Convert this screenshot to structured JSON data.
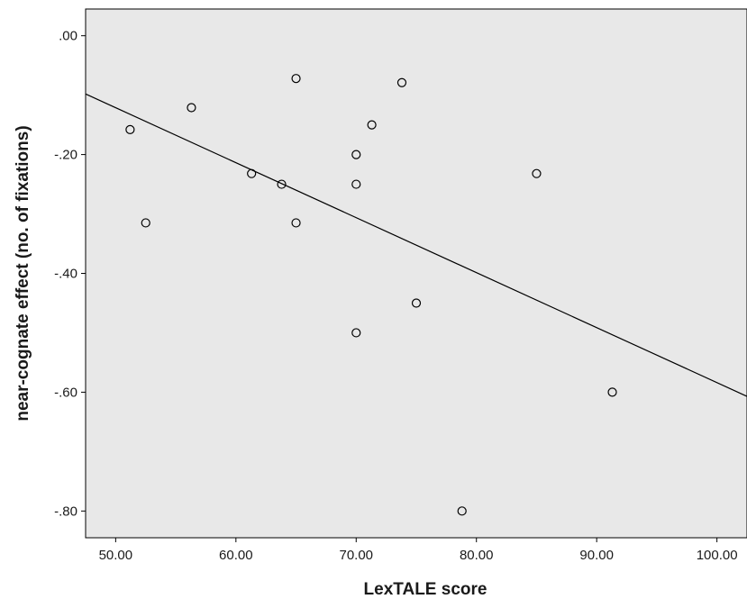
{
  "chart_data": {
    "type": "scatter",
    "title": "",
    "xlabel": "LexTALE score",
    "ylabel": "near-cognate effect (no. of fixations)",
    "xlim": [
      47.5,
      102.5
    ],
    "ylim": [
      -0.845,
      0.045
    ],
    "x_ticks": [
      50,
      60,
      70,
      80,
      90,
      100
    ],
    "x_tick_labels": [
      "50.00",
      "60.00",
      "70.00",
      "80.00",
      "90.00",
      "100.00"
    ],
    "y_ticks": [
      0,
      -0.2,
      -0.4,
      -0.6,
      -0.8
    ],
    "y_tick_labels": [
      ".00",
      "-.20",
      "-.40",
      "-.60",
      "-.80"
    ],
    "grid": false,
    "points": [
      {
        "x": 51.2,
        "y": -0.158
      },
      {
        "x": 52.5,
        "y": -0.315
      },
      {
        "x": 56.3,
        "y": -0.121
      },
      {
        "x": 61.3,
        "y": -0.232
      },
      {
        "x": 63.8,
        "y": -0.25
      },
      {
        "x": 65.0,
        "y": -0.072
      },
      {
        "x": 65.0,
        "y": -0.315
      },
      {
        "x": 70.0,
        "y": -0.2
      },
      {
        "x": 70.0,
        "y": -0.25
      },
      {
        "x": 70.0,
        "y": -0.5
      },
      {
        "x": 71.3,
        "y": -0.15
      },
      {
        "x": 73.8,
        "y": -0.079
      },
      {
        "x": 75.0,
        "y": -0.45
      },
      {
        "x": 78.8,
        "y": -0.8
      },
      {
        "x": 85.0,
        "y": -0.232
      },
      {
        "x": 91.3,
        "y": -0.6
      }
    ],
    "fit_line": {
      "x": [
        47.5,
        102.5
      ],
      "y": [
        -0.098,
        -0.607
      ]
    },
    "colors": {
      "plot_background": "#e8e8e8",
      "marker": "#000000",
      "line": "#000000"
    }
  }
}
